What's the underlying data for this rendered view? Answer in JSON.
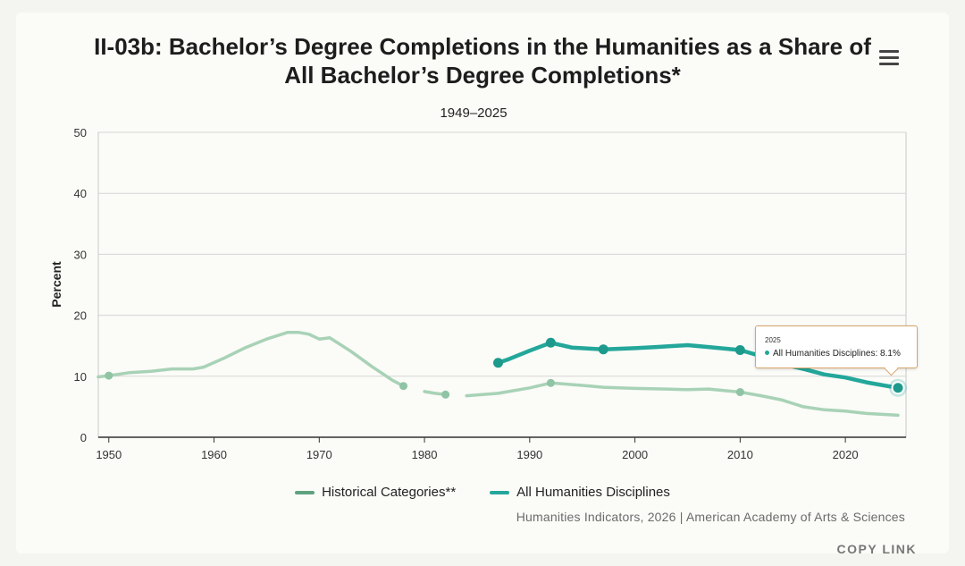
{
  "title_line1": "II-03b: Bachelor’s Degree Completions in the Humanities as a Share of",
  "title_line2": "All Bachelor’s Degree Completions*",
  "subtitle": "1949–2025",
  "menu_icon": "hamburger-menu-icon",
  "credits": "Humanities Indicators, 2026 | American Academy of Arts & Sciences",
  "copy_link": "COPY LINK",
  "tooltip": {
    "year": "2025",
    "text": "All Humanities Disciplines: 8.1%"
  },
  "chart_data": {
    "type": "line",
    "title": "II-03b: Bachelor’s Degree Completions in the Humanities as a Share of All Bachelor’s Degree Completions*",
    "subtitle": "1949–2025",
    "ylabel": "Percent",
    "xlabel": "",
    "xlim": [
      1949,
      2025
    ],
    "ylim": [
      0,
      50
    ],
    "x_ticks": [
      1950,
      1960,
      1970,
      1980,
      1990,
      2000,
      2010,
      2020
    ],
    "y_ticks": [
      0,
      10,
      20,
      30,
      40,
      50
    ],
    "grid": "horizontal",
    "legend_position": "bottom-center",
    "series": [
      {
        "name": "Historical Categories**",
        "color": "#a8d2b6",
        "segments": [
          {
            "x": [
              1949,
              1950,
              1952,
              1954,
              1956,
              1958,
              1959,
              1961,
              1963,
              1965,
              1967,
              1968,
              1969,
              1970,
              1971,
              1973,
              1975,
              1977,
              1978
            ],
            "y": [
              9.9,
              10.1,
              10.6,
              10.8,
              11.2,
              11.2,
              11.5,
              13.0,
              14.7,
              16.1,
              17.2,
              17.2,
              16.9,
              16.1,
              16.3,
              14.1,
              11.6,
              9.3,
              8.4
            ]
          },
          {
            "x": [
              1980,
              1981,
              1982
            ],
            "y": [
              7.5,
              7.2,
              7.0
            ]
          },
          {
            "x": [
              1984,
              1987,
              1990,
              1992,
              1995,
              1997,
              2000,
              2003,
              2005,
              2007,
              2010,
              2012,
              2014,
              2016,
              2018,
              2020,
              2022,
              2025
            ],
            "y": [
              6.8,
              7.2,
              8.1,
              8.9,
              8.5,
              8.2,
              8.0,
              7.9,
              7.8,
              7.9,
              7.4,
              6.8,
              6.1,
              5.0,
              4.5,
              4.3,
              3.9,
              3.6
            ]
          }
        ],
        "markers": [
          {
            "x": 1950,
            "y": 10.1
          },
          {
            "x": 1978,
            "y": 8.4
          },
          {
            "x": 1982,
            "y": 7.0
          },
          {
            "x": 1992,
            "y": 8.9
          },
          {
            "x": 2010,
            "y": 7.4
          }
        ]
      },
      {
        "name": "All Humanities Disciplines",
        "color": "#23a79a",
        "segments": [
          {
            "x": [
              1987,
              1988,
              1990,
              1992,
              1994,
              1997,
              2000,
              2002,
              2005,
              2007,
              2010,
              2012,
              2014,
              2016,
              2018,
              2020,
              2022,
              2025
            ],
            "y": [
              12.2,
              12.8,
              14.2,
              15.5,
              14.7,
              14.4,
              14.6,
              14.8,
              15.1,
              14.8,
              14.3,
              13.3,
              12.0,
              11.2,
              10.3,
              9.8,
              9.0,
              8.1
            ]
          }
        ],
        "markers": [
          {
            "x": 1987,
            "y": 12.2
          },
          {
            "x": 1992,
            "y": 15.5
          },
          {
            "x": 1997,
            "y": 14.4
          },
          {
            "x": 2010,
            "y": 14.3
          }
        ],
        "highlight": {
          "x": 2025,
          "y": 8.1
        }
      }
    ]
  },
  "legend": [
    {
      "label": "Historical Categories**",
      "color": "#5fa27f"
    },
    {
      "label": "All Humanities Disciplines",
      "color": "#23a79a"
    }
  ]
}
